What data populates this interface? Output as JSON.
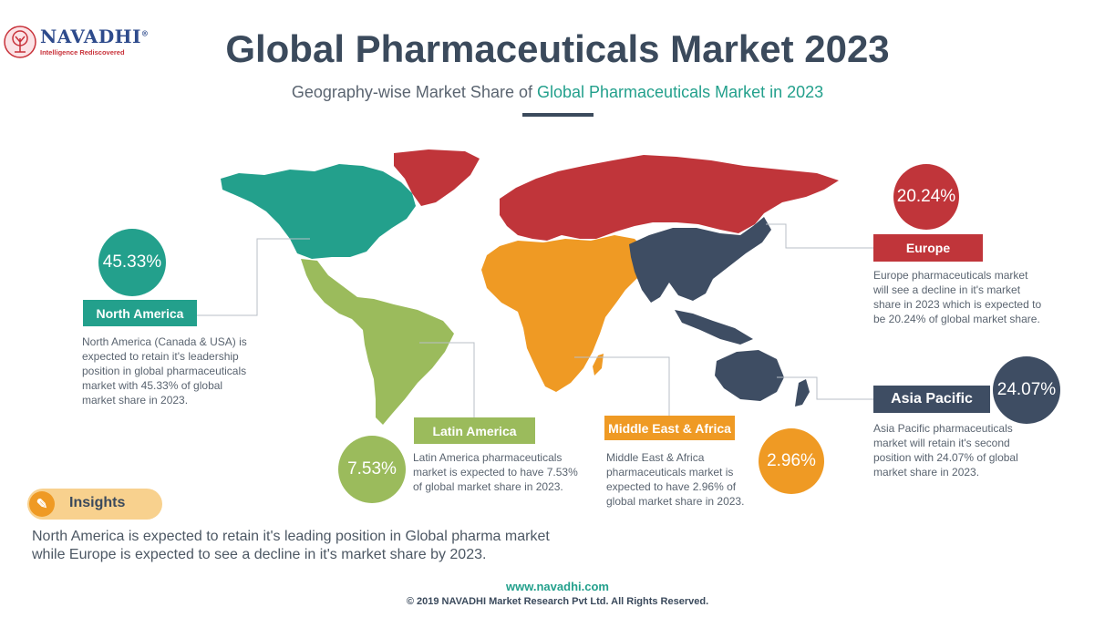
{
  "logo": {
    "brand": "NAVADHI",
    "registered": "®",
    "tagline": "Intelligence Rediscovered",
    "icon": "tree-icon"
  },
  "header": {
    "title": "Global Pharmaceuticals Market 2023",
    "subtitle_prefix": "Geography-wise Market Share of ",
    "subtitle_highlight": "Global Pharmaceuticals Market in 2023"
  },
  "colors": {
    "north_america": "#23a08c",
    "latin_america": "#9bbb5c",
    "europe": "#c0353a",
    "middle_east_africa": "#ef9a24",
    "asia_pacific": "#3e4d63"
  },
  "regions": [
    {
      "id": "north-america",
      "name": "North America",
      "share": "45.33%",
      "share_value": 45.33,
      "description": "North America (Canada & USA) is expected to retain it's leadership position in global pharmaceuticals market with 45.33% of global market share in 2023."
    },
    {
      "id": "latin-america",
      "name": "Latin America",
      "share": "7.53%",
      "share_value": 7.53,
      "description": "Latin America pharmaceuticals market is expected to have 7.53% of global market share in 2023."
    },
    {
      "id": "middle-east-africa",
      "name": "Middle East & Africa",
      "share": "2.96%",
      "share_value": 2.96,
      "description": "Middle East & Africa pharmaceuticals market is expected to have 2.96% of global market share in 2023."
    },
    {
      "id": "europe",
      "name": "Europe",
      "share": "20.24%",
      "share_value": 20.24,
      "description": "Europe pharmaceuticals market will see a decline in it's market share in 2023 which is expected to be 20.24% of global market share."
    },
    {
      "id": "asia-pacific",
      "name": "Asia Pacific",
      "share": "24.07%",
      "share_value": 24.07,
      "description": "Asia Pacific pharmaceuticals market will retain it's second position with 24.07% of global market share in 2023."
    }
  ],
  "insights": {
    "label": "Insights",
    "icon": "pencil-icon",
    "text": "North America is expected to retain it's leading position in Global pharma market while Europe is expected to see a decline in it's market share by 2023."
  },
  "footer": {
    "url": "www.navadhi.com",
    "copyright": "© 2019 NAVADHI Market Research Pvt Ltd. All Rights Reserved."
  }
}
